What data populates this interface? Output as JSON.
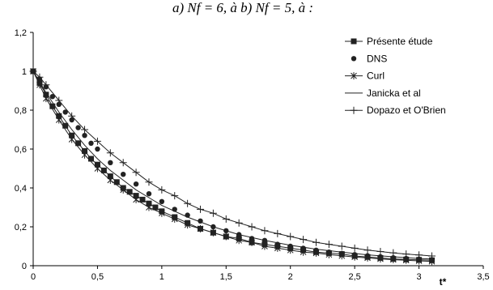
{
  "chart_data": {
    "type": "line",
    "title": "a) Nf = 6, à b) Nf = 5, à :",
    "xlabel": "t*",
    "ylabel": "",
    "xlim": [
      0,
      3.5
    ],
    "ylim": [
      0,
      1.2
    ],
    "x_ticks": [
      "0",
      "0,5",
      "1",
      "1,5",
      "2",
      "2,5",
      "3",
      "3,5"
    ],
    "y_ticks": [
      "0",
      "0,2",
      "0,4",
      "0,6",
      "0,8",
      "1",
      "1,2"
    ],
    "grid": false,
    "legend_position": "right",
    "series": [
      {
        "name": "Présente étude",
        "marker": "square",
        "line": true,
        "x": [
          0,
          0.05,
          0.1,
          0.15,
          0.2,
          0.25,
          0.3,
          0.35,
          0.4,
          0.45,
          0.5,
          0.55,
          0.6,
          0.65,
          0.7,
          0.75,
          0.8,
          0.85,
          0.9,
          0.95,
          1.0,
          1.1,
          1.2,
          1.3,
          1.4,
          1.5,
          1.6,
          1.7,
          1.8,
          1.9,
          2.0,
          2.1,
          2.2,
          2.3,
          2.4,
          2.5,
          2.6,
          2.7,
          2.8,
          2.9,
          3.0,
          3.1
        ],
        "y": [
          1.0,
          0.94,
          0.88,
          0.82,
          0.77,
          0.72,
          0.67,
          0.63,
          0.59,
          0.55,
          0.52,
          0.49,
          0.46,
          0.43,
          0.4,
          0.38,
          0.36,
          0.34,
          0.32,
          0.3,
          0.28,
          0.25,
          0.22,
          0.19,
          0.17,
          0.15,
          0.14,
          0.12,
          0.11,
          0.1,
          0.09,
          0.08,
          0.07,
          0.065,
          0.06,
          0.05,
          0.045,
          0.04,
          0.035,
          0.032,
          0.03,
          0.028
        ]
      },
      {
        "name": "DNS",
        "marker": "circle",
        "line": false,
        "x": [
          0,
          0.05,
          0.1,
          0.15,
          0.2,
          0.25,
          0.3,
          0.35,
          0.4,
          0.45,
          0.5,
          0.6,
          0.7,
          0.8,
          0.9,
          1.0,
          1.1,
          1.2,
          1.3,
          1.4,
          1.5,
          1.6,
          1.7,
          1.8,
          1.9,
          2.0,
          2.1,
          2.2,
          2.3,
          2.4,
          2.5,
          2.6,
          2.7,
          2.8,
          2.9,
          3.0,
          3.1
        ],
        "y": [
          1.0,
          0.96,
          0.92,
          0.87,
          0.83,
          0.79,
          0.75,
          0.71,
          0.67,
          0.63,
          0.6,
          0.53,
          0.47,
          0.42,
          0.37,
          0.33,
          0.29,
          0.26,
          0.23,
          0.2,
          0.18,
          0.16,
          0.14,
          0.13,
          0.11,
          0.1,
          0.09,
          0.08,
          0.07,
          0.063,
          0.057,
          0.051,
          0.046,
          0.041,
          0.037,
          0.034,
          0.031
        ]
      },
      {
        "name": "Curl",
        "marker": "asterisk",
        "line": true,
        "x": [
          0,
          0.05,
          0.1,
          0.2,
          0.3,
          0.4,
          0.5,
          0.6,
          0.7,
          0.8,
          0.9,
          1.0,
          1.1,
          1.2,
          1.3,
          1.4,
          1.5,
          1.6,
          1.7,
          1.8,
          1.9,
          2.0,
          2.1,
          2.2,
          2.3,
          2.4,
          2.5,
          2.6,
          2.7,
          2.8,
          2.9,
          3.0,
          3.1
        ],
        "y": [
          1.0,
          0.93,
          0.86,
          0.75,
          0.65,
          0.57,
          0.5,
          0.44,
          0.39,
          0.34,
          0.3,
          0.27,
          0.24,
          0.21,
          0.19,
          0.17,
          0.15,
          0.13,
          0.12,
          0.1,
          0.09,
          0.08,
          0.07,
          0.065,
          0.057,
          0.051,
          0.045,
          0.04,
          0.035,
          0.031,
          0.028,
          0.025,
          0.022
        ]
      },
      {
        "name": "Janicka et al",
        "marker": "none",
        "line": true,
        "x": [
          0,
          0.1,
          0.2,
          0.3,
          0.4,
          0.5,
          0.6,
          0.7,
          0.8,
          0.9,
          1.0,
          1.2,
          1.4,
          1.6,
          1.8,
          2.0,
          2.2,
          2.4,
          2.6,
          2.8,
          3.0,
          3.1
        ],
        "y": [
          1.0,
          0.89,
          0.79,
          0.7,
          0.62,
          0.55,
          0.49,
          0.44,
          0.39,
          0.35,
          0.31,
          0.25,
          0.2,
          0.16,
          0.13,
          0.105,
          0.085,
          0.07,
          0.056,
          0.046,
          0.037,
          0.034
        ]
      },
      {
        "name": "Dopazo et O'Brien",
        "marker": "plus",
        "line": true,
        "x": [
          0,
          0.05,
          0.1,
          0.2,
          0.3,
          0.4,
          0.5,
          0.6,
          0.7,
          0.8,
          0.9,
          1.0,
          1.1,
          1.2,
          1.3,
          1.4,
          1.5,
          1.6,
          1.7,
          1.8,
          1.9,
          2.0,
          2.1,
          2.2,
          2.3,
          2.4,
          2.5,
          2.6,
          2.7,
          2.8,
          2.9,
          3.0,
          3.1
        ],
        "y": [
          1.0,
          0.97,
          0.93,
          0.85,
          0.77,
          0.7,
          0.64,
          0.58,
          0.53,
          0.48,
          0.43,
          0.39,
          0.36,
          0.32,
          0.29,
          0.27,
          0.24,
          0.22,
          0.2,
          0.18,
          0.165,
          0.15,
          0.135,
          0.12,
          0.11,
          0.1,
          0.09,
          0.08,
          0.073,
          0.066,
          0.06,
          0.055,
          0.05
        ]
      }
    ]
  }
}
